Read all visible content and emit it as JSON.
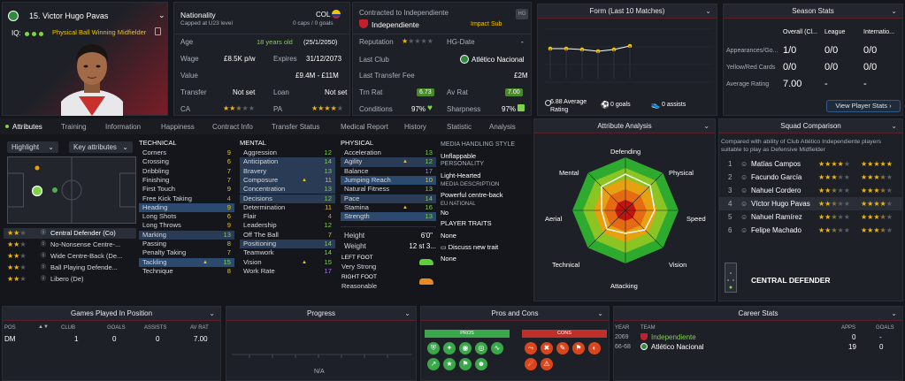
{
  "profile": {
    "number_name": "15. Victor Hugo Pavas",
    "iq_label": "IQ:",
    "roles": "Physical Ball Winning Midfielder"
  },
  "info": {
    "nationality_label": "Nationality",
    "nationality_code": "COL",
    "caps": "0 caps / 0 goals",
    "u23": "Capped at U23 level",
    "age_label": "Age",
    "age_value": "18 years old",
    "dob": "(25/1/2050)",
    "wage_label": "Wage",
    "wage_value": "£8.5K p/w",
    "expires_label": "Expires",
    "expires_value": "31/12/2073",
    "value_label": "Value",
    "value_value": "£9.4M - £11M",
    "transfer_label": "Transfer",
    "transfer_value": "Not set",
    "loan_label": "Loan",
    "loan_value": "Not set",
    "ca_label": "CA",
    "pa_label": "PA"
  },
  "contract": {
    "title": "Contracted to Independiente",
    "club": "Independiente",
    "squad_status": "Impact Sub",
    "reputation_label": "Reputation",
    "hgdate_label": "HG-Date",
    "hgdate_value": "-",
    "lastclub_label": "Last Club",
    "lastclub_value": "Atlético Nacional",
    "ltf_label": "Last Transfer Fee",
    "ltf_value": "£2M",
    "trnrat_label": "Trn Rat",
    "trnrat_value": "6.73",
    "avrat_label": "Av Rat",
    "avrat_value": "7.00",
    "cond_label": "Conditions",
    "cond_value": "97%",
    "sharp_label": "Sharpness",
    "sharp_value": "97%"
  },
  "form": {
    "title": "Form (Last 10 Matches)",
    "avg_rating": "6.88 Average Rating",
    "goals": "0 goals",
    "assists": "0 assists"
  },
  "season": {
    "title": "Season Stats",
    "cols": [
      "Overall (Cl...",
      "League",
      "Internatio..."
    ],
    "rows": [
      {
        "label": "Appearances/Go...",
        "v": [
          "1/0",
          "0/0",
          "0/0"
        ]
      },
      {
        "label": "Yellow/Red Cards",
        "v": [
          "0/0",
          "0/0",
          "0/0"
        ]
      },
      {
        "label": "Average Rating",
        "v": [
          "7.00",
          "-",
          "-"
        ]
      }
    ],
    "button": "View Player Stats"
  },
  "tabs": [
    "Attributes",
    "Training",
    "Information",
    "Happiness",
    "Contract Info",
    "Transfer Status",
    "Medical Report",
    "History",
    "Statistic",
    "Analysis"
  ],
  "pitch": {
    "highlight": "Highlight",
    "keyattr": "Key attributes"
  },
  "positions": [
    {
      "stars": 2,
      "label": "Central Defender (Co)"
    },
    {
      "stars": 2,
      "label": "No-Nonsense Centre-..."
    },
    {
      "stars": 2,
      "label": "Wide Centre-Back (De..."
    },
    {
      "stars": 2,
      "label": "Ball Playing Defende..."
    },
    {
      "stars": 2,
      "label": "Libero (De)"
    }
  ],
  "technical": {
    "title": "TECHNICAL",
    "items": [
      {
        "n": "Corners",
        "v": "9"
      },
      {
        "n": "Crossing",
        "v": "6"
      },
      {
        "n": "Dribbling",
        "v": "7"
      },
      {
        "n": "Finishing",
        "v": "7"
      },
      {
        "n": "First Touch",
        "v": "9"
      },
      {
        "n": "Free Kick Taking",
        "v": "4"
      },
      {
        "n": "Heading",
        "v": "9"
      },
      {
        "n": "Long Shots",
        "v": "6"
      },
      {
        "n": "Long Throws",
        "v": "9"
      },
      {
        "n": "Marking",
        "v": "13"
      },
      {
        "n": "Passing",
        "v": "8"
      },
      {
        "n": "Penalty Taking",
        "v": "7"
      },
      {
        "n": "Tackling",
        "v": "15"
      },
      {
        "n": "Technique",
        "v": "8"
      }
    ]
  },
  "mental": {
    "title": "MENTAL",
    "items": [
      {
        "n": "Aggression",
        "v": "12"
      },
      {
        "n": "Anticipation",
        "v": "14"
      },
      {
        "n": "Bravery",
        "v": "13"
      },
      {
        "n": "Composure",
        "v": "11"
      },
      {
        "n": "Concentration",
        "v": "13"
      },
      {
        "n": "Decisions",
        "v": "12"
      },
      {
        "n": "Determination",
        "v": "11"
      },
      {
        "n": "Flair",
        "v": "4"
      },
      {
        "n": "Leadership",
        "v": "12"
      },
      {
        "n": "Off The Ball",
        "v": "7"
      },
      {
        "n": "Positioning",
        "v": "14"
      },
      {
        "n": "Teamwork",
        "v": "14"
      },
      {
        "n": "Vision",
        "v": "15"
      },
      {
        "n": "Work Rate",
        "v": "17"
      }
    ]
  },
  "physical": {
    "title": "PHYSICAL",
    "items": [
      {
        "n": "Acceleration",
        "v": "13"
      },
      {
        "n": "Agility",
        "v": "12"
      },
      {
        "n": "Balance",
        "v": "17"
      },
      {
        "n": "Jumping Reach",
        "v": "10"
      },
      {
        "n": "Natural Fitness",
        "v": "13"
      },
      {
        "n": "Pace",
        "v": "14"
      },
      {
        "n": "Stamina",
        "v": "16"
      },
      {
        "n": "Strength",
        "v": "13"
      }
    ],
    "height_label": "Height",
    "height_value": "6'0\"",
    "weight_label": "Weight",
    "weight_value": "12 st 3...",
    "leftfoot_label": "LEFT FOOT",
    "leftfoot_value": "Very Strong",
    "rightfoot_label": "RIGHT FOOT",
    "rightfoot_value": "Reasonable"
  },
  "media": {
    "handling_title": "MEDIA HANDLING STYLE",
    "handling_value": "Unflappable",
    "personality_title": "PERSONALITY",
    "personality_value": "Light-Hearted",
    "desc_title": "MEDIA DESCRIPTION",
    "desc_value": "Powerful centre-back",
    "eu_title": "EU NATIONAL",
    "eu_value": "No",
    "traits_title": "PLAYER TRAITS",
    "traits_value": "None",
    "discuss": "Discuss new trait",
    "discuss_value": "None"
  },
  "analysis": {
    "title": "Attribute Analysis",
    "labels": [
      "Defending",
      "Physical",
      "Speed",
      "Vision",
      "Attacking",
      "Technical",
      "Aerial",
      "Mental"
    ]
  },
  "squad": {
    "title": "Squad Comparison",
    "desc": "Compared with ability of Club Atlético Independiente players suitable to play as Defensive Midfielder",
    "players": [
      {
        "rank": "1",
        "name": "Matías Campos",
        "ca": 4,
        "pa": 5
      },
      {
        "rank": "2",
        "name": "Facundo García",
        "ca": 3,
        "pa": 4
      },
      {
        "rank": "3",
        "name": "Nahuel Cordero",
        "ca": 3,
        "pa": 4
      },
      {
        "rank": "4",
        "name": "Víctor Hugo Pavas",
        "ca": 3,
        "pa": 4
      },
      {
        "rank": "5",
        "name": "Nahuel Ramírez",
        "ca": 3,
        "pa": 4
      },
      {
        "rank": "6",
        "name": "Felipe Machado",
        "ca": 3,
        "pa": 4
      }
    ],
    "position": "CENTRAL DEFENDER"
  },
  "games": {
    "title": "Games Played In Position",
    "cols": [
      "POS",
      "CLUB",
      "GOALS",
      "ASSISTS",
      "AV RAT"
    ],
    "row": [
      "DM",
      "1",
      "0",
      "0",
      "7.00"
    ]
  },
  "progress": {
    "title": "Progress",
    "na": "N/A"
  },
  "proscons": {
    "title": "Pros and Cons",
    "pros": "PROS",
    "cons": "CONS"
  },
  "career": {
    "title": "Career Stats",
    "cols": [
      "YEAR",
      "TEAM",
      "APPS",
      "GOALS"
    ],
    "rows": [
      {
        "year": "2069",
        "team": "Independiente",
        "apps": "0",
        "goals": "-"
      },
      {
        "year": "66-68",
        "team": "Atlético Nacional",
        "apps": "19",
        "goals": "0"
      }
    ]
  },
  "colors": {
    "accent_red": "#c0202f",
    "green": "#7fd34a",
    "star": "#f2b705",
    "highlight": "#2c4a6e"
  }
}
